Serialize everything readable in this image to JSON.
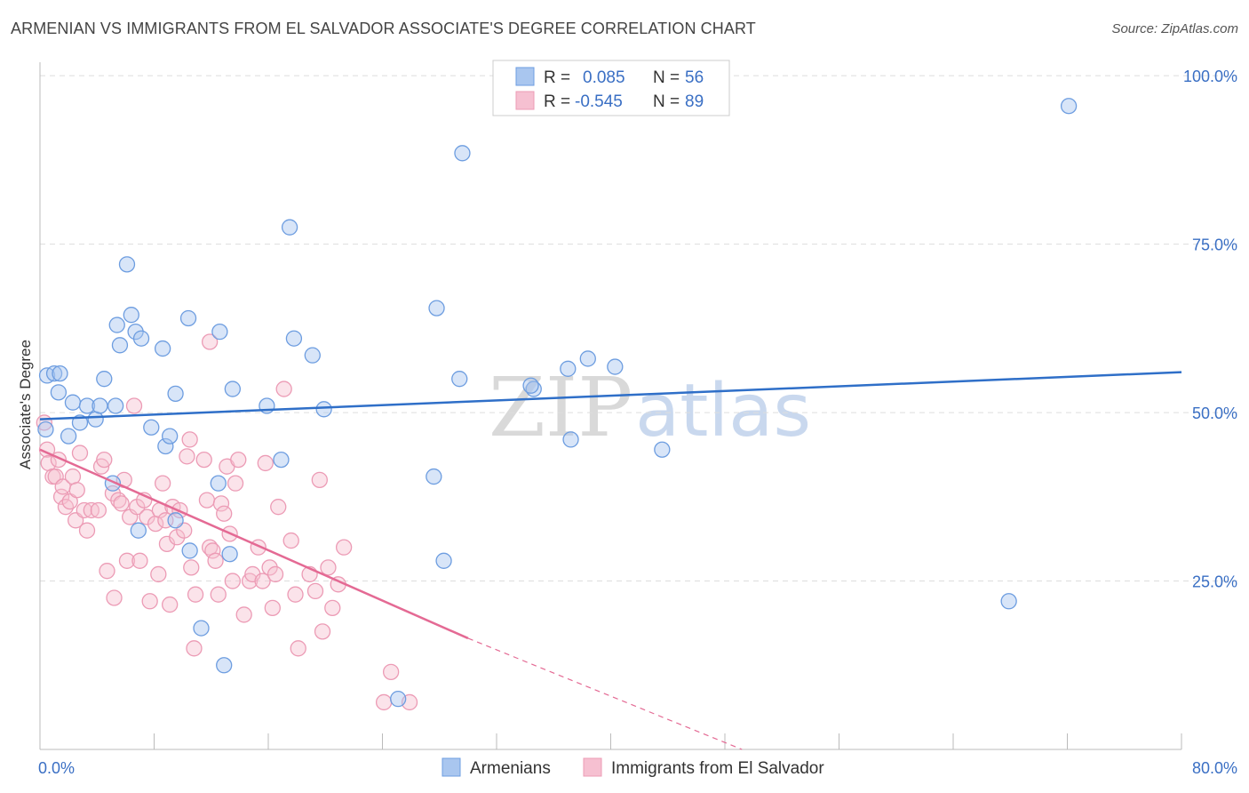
{
  "title": "ARMENIAN VS IMMIGRANTS FROM EL SALVADOR ASSOCIATE'S DEGREE CORRELATION CHART",
  "source": "Source: ZipAtlas.com",
  "watermark": {
    "zip": "ZIP",
    "atlas": "atlas"
  },
  "colors": {
    "blue": "#6d9de0",
    "blue_line": "#2f6fc8",
    "pink": "#ec9bb5",
    "pink_line": "#e46a94",
    "axis_label": "#3a6fc4",
    "grid": "#dddddd"
  },
  "legend": {
    "r_label": "R =",
    "n_label": "N =",
    "rows": [
      {
        "r": "0.085",
        "n": "56",
        "color": "#a9c6ef",
        "stroke": "#6d9de0"
      },
      {
        "r": "-0.545",
        "n": "89",
        "color": "#f6c0d1",
        "stroke": "#ec9bb5"
      }
    ]
  },
  "bottom_legend": [
    "Armenians",
    "Immigrants from El Salvador"
  ],
  "chart_data": {
    "type": "scatter",
    "title": "ARMENIAN VS IMMIGRANTS FROM EL SALVADOR ASSOCIATE'S DEGREE CORRELATION CHART",
    "xlabel": "",
    "ylabel": "Associate's Degree",
    "xlim": [
      0,
      80
    ],
    "ylim": [
      0,
      102
    ],
    "x_tick_labels": [
      "0.0%",
      "80.0%"
    ],
    "y_ticks": [
      25,
      50,
      75,
      100
    ],
    "y_tick_labels": [
      "25.0%",
      "50.0%",
      "75.0%",
      "100.0%"
    ],
    "grid": true,
    "legend_position": "top-center",
    "series": [
      {
        "name": "Armenians",
        "r": 0.085,
        "n": 56,
        "trend": {
          "x": [
            0,
            80
          ],
          "y": [
            49.0,
            56.0
          ],
          "dashed_from": null
        },
        "points": [
          [
            0.4,
            47.5
          ],
          [
            0.5,
            55.5
          ],
          [
            1.0,
            55.8
          ],
          [
            1.4,
            55.8
          ],
          [
            1.3,
            53.0
          ],
          [
            2.3,
            51.5
          ],
          [
            2.0,
            46.5
          ],
          [
            2.8,
            48.5
          ],
          [
            3.3,
            51.0
          ],
          [
            3.9,
            49.0
          ],
          [
            4.2,
            51.0
          ],
          [
            4.5,
            55.0
          ],
          [
            5.3,
            51.0
          ],
          [
            5.1,
            39.5
          ],
          [
            5.6,
            60.0
          ],
          [
            5.4,
            63.0
          ],
          [
            6.1,
            72.0
          ],
          [
            6.4,
            64.5
          ],
          [
            6.7,
            62.0
          ],
          [
            7.1,
            61.0
          ],
          [
            7.8,
            47.8
          ],
          [
            8.8,
            45.0
          ],
          [
            8.6,
            59.5
          ],
          [
            9.1,
            46.5
          ],
          [
            9.5,
            52.8
          ],
          [
            10.4,
            64.0
          ],
          [
            9.5,
            34.0
          ],
          [
            10.5,
            29.5
          ],
          [
            11.3,
            18.0
          ],
          [
            12.6,
            62.0
          ],
          [
            13.5,
            53.5
          ],
          [
            12.5,
            39.5
          ],
          [
            12.9,
            12.5
          ],
          [
            13.3,
            29.0
          ],
          [
            15.9,
            51.0
          ],
          [
            16.9,
            43.0
          ],
          [
            17.5,
            77.5
          ],
          [
            17.8,
            61.0
          ],
          [
            19.1,
            58.5
          ],
          [
            19.9,
            50.5
          ],
          [
            6.9,
            32.5
          ],
          [
            27.6,
            40.5
          ],
          [
            27.8,
            65.5
          ],
          [
            28.3,
            28.0
          ],
          [
            29.4,
            55.0
          ],
          [
            29.6,
            88.5
          ],
          [
            34.6,
            53.5
          ],
          [
            34.4,
            54.0
          ],
          [
            37.0,
            56.5
          ],
          [
            37.2,
            46.0
          ],
          [
            38.4,
            58.0
          ],
          [
            40.3,
            56.8
          ],
          [
            43.6,
            44.5
          ],
          [
            25.1,
            7.5
          ],
          [
            67.9,
            22.0
          ],
          [
            72.1,
            95.5
          ]
        ]
      },
      {
        "name": "Immigrants from El Salvador",
        "r": -0.545,
        "n": 89,
        "trend": {
          "x": [
            0,
            30,
            49.2
          ],
          "y": [
            44.5,
            16.5,
            0
          ],
          "dashed_from": 30
        },
        "points": [
          [
            0.3,
            48.5
          ],
          [
            0.5,
            44.5
          ],
          [
            0.6,
            42.5
          ],
          [
            0.9,
            40.5
          ],
          [
            1.1,
            40.5
          ],
          [
            1.3,
            43.0
          ],
          [
            1.5,
            37.5
          ],
          [
            1.6,
            39.0
          ],
          [
            1.8,
            36.0
          ],
          [
            2.1,
            36.8
          ],
          [
            2.3,
            40.5
          ],
          [
            2.5,
            34.0
          ],
          [
            2.6,
            38.5
          ],
          [
            2.8,
            44.0
          ],
          [
            3.1,
            35.5
          ],
          [
            3.3,
            32.5
          ],
          [
            3.6,
            35.5
          ],
          [
            4.1,
            35.5
          ],
          [
            4.3,
            42.0
          ],
          [
            4.5,
            43.0
          ],
          [
            4.7,
            26.5
          ],
          [
            5.1,
            38.0
          ],
          [
            5.2,
            22.5
          ],
          [
            5.5,
            37.0
          ],
          [
            5.7,
            36.5
          ],
          [
            5.9,
            40.0
          ],
          [
            6.1,
            28.0
          ],
          [
            6.3,
            34.5
          ],
          [
            6.6,
            51.0
          ],
          [
            6.8,
            36.0
          ],
          [
            7.0,
            28.0
          ],
          [
            7.3,
            37.0
          ],
          [
            7.5,
            34.5
          ],
          [
            7.7,
            22.0
          ],
          [
            8.1,
            33.5
          ],
          [
            8.3,
            26.0
          ],
          [
            8.4,
            35.5
          ],
          [
            8.6,
            39.5
          ],
          [
            8.8,
            34.0
          ],
          [
            8.9,
            30.5
          ],
          [
            9.1,
            21.5
          ],
          [
            9.3,
            36.0
          ],
          [
            9.6,
            31.5
          ],
          [
            9.8,
            35.5
          ],
          [
            10.1,
            32.5
          ],
          [
            10.3,
            43.5
          ],
          [
            10.5,
            46.0
          ],
          [
            10.6,
            27.0
          ],
          [
            10.8,
            15.0
          ],
          [
            10.9,
            23.0
          ],
          [
            11.5,
            43.0
          ],
          [
            11.7,
            37.0
          ],
          [
            11.9,
            30.0
          ],
          [
            12.1,
            29.5
          ],
          [
            12.3,
            28.0
          ],
          [
            12.5,
            23.0
          ],
          [
            12.7,
            36.5
          ],
          [
            12.9,
            35.0
          ],
          [
            13.1,
            42.0
          ],
          [
            13.3,
            32.0
          ],
          [
            13.5,
            25.0
          ],
          [
            13.7,
            39.5
          ],
          [
            13.9,
            43.0
          ],
          [
            14.3,
            20.0
          ],
          [
            14.7,
            25.0
          ],
          [
            14.9,
            26.0
          ],
          [
            15.3,
            30.0
          ],
          [
            15.6,
            25.0
          ],
          [
            15.8,
            42.5
          ],
          [
            16.1,
            27.0
          ],
          [
            16.3,
            21.0
          ],
          [
            16.5,
            26.0
          ],
          [
            16.7,
            36.0
          ],
          [
            17.1,
            53.5
          ],
          [
            17.6,
            31.0
          ],
          [
            17.9,
            23.0
          ],
          [
            18.1,
            15.0
          ],
          [
            18.9,
            26.0
          ],
          [
            19.3,
            23.5
          ],
          [
            19.6,
            40.0
          ],
          [
            19.8,
            17.5
          ],
          [
            20.2,
            27.0
          ],
          [
            20.5,
            21.0
          ],
          [
            20.9,
            24.5
          ],
          [
            21.3,
            30.0
          ],
          [
            24.1,
            7.0
          ],
          [
            24.6,
            11.5
          ],
          [
            25.9,
            7.0
          ],
          [
            11.9,
            60.5
          ]
        ]
      }
    ]
  }
}
